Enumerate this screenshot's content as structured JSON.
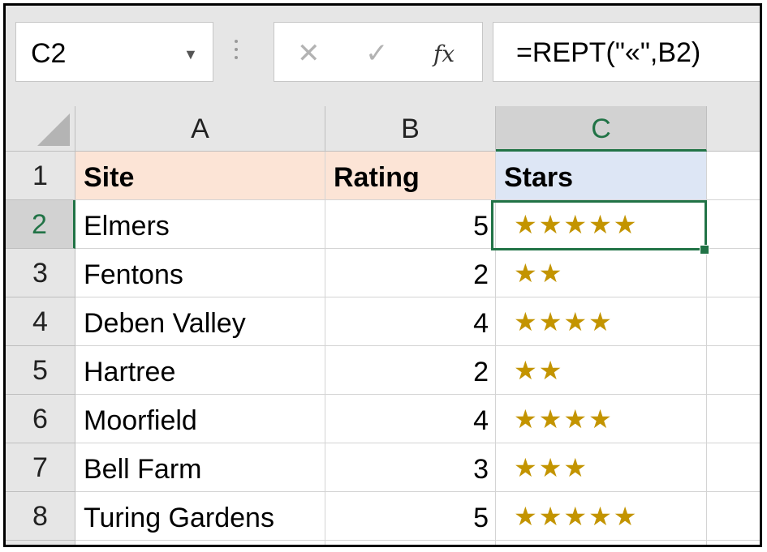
{
  "name_box": {
    "value": "C2",
    "dropdown_icon": "chevron-down-icon"
  },
  "formula_bar": {
    "cancel_icon": "✕",
    "enter_icon": "✓",
    "fx_label": "fx",
    "formula": "=REPT(\"«\",B2)"
  },
  "columns": [
    "A",
    "B",
    "C"
  ],
  "rows": [
    "1",
    "2",
    "3",
    "4",
    "5",
    "6",
    "7",
    "8"
  ],
  "selected_cell": "C2",
  "sheet": {
    "headers": {
      "site": "Site",
      "rating": "Rating",
      "stars": "Stars"
    },
    "records": [
      {
        "site": "Elmers",
        "rating": "5",
        "stars": "★★★★★"
      },
      {
        "site": "Fentons",
        "rating": "2",
        "stars": "★★"
      },
      {
        "site": "Deben Valley",
        "rating": "4",
        "stars": "★★★★"
      },
      {
        "site": "Hartree",
        "rating": "2",
        "stars": "★★"
      },
      {
        "site": "Moorfield",
        "rating": "4",
        "stars": "★★★★"
      },
      {
        "site": "Bell Farm",
        "rating": "3",
        "stars": "★★★"
      },
      {
        "site": "Turing Gardens",
        "rating": "5",
        "stars": "★★★★★"
      }
    ]
  },
  "colors": {
    "accent": "#217346",
    "header_fill": "#fce4d6",
    "stars_header_fill": "#dde6f5",
    "star_color": "#c39400"
  }
}
